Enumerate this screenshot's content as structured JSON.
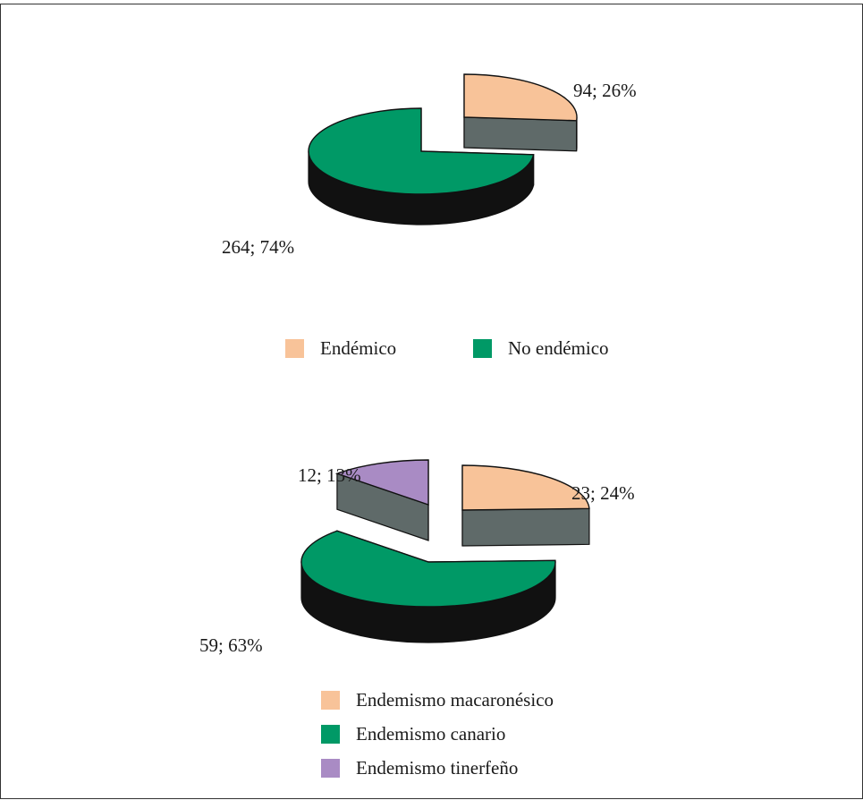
{
  "chart_data": [
    {
      "type": "pie",
      "three_d": true,
      "categories": [
        "Endémico",
        "No endémico"
      ],
      "values": [
        94,
        264
      ],
      "percent": [
        26,
        74
      ],
      "data_labels": [
        "94; 26%",
        "264; 74%"
      ],
      "colors": [
        "#f8c399",
        "#009966"
      ],
      "legend": {
        "placement": "bottom",
        "items": [
          "Endémico",
          "No endémico"
        ]
      }
    },
    {
      "type": "pie",
      "three_d": true,
      "categories": [
        "Endemismo macaronésico",
        "Endemismo canario",
        "Endemismo tinerfeño"
      ],
      "values": [
        23,
        59,
        12
      ],
      "percent": [
        24,
        63,
        13
      ],
      "data_labels": [
        "23; 24%",
        "59; 63%",
        "12; 13%"
      ],
      "colors": [
        "#f8c399",
        "#009966",
        "#a98bc4"
      ],
      "legend": {
        "placement": "bottom",
        "items": [
          "Endemismo macaronésico",
          "Endemismo canario",
          "Endemismo tinerfeño"
        ]
      }
    }
  ]
}
